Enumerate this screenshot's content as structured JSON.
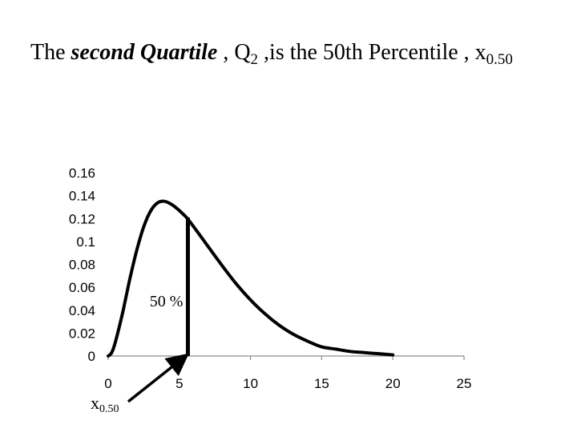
{
  "slide": {
    "title_part1": "The ",
    "title_emph": "second Quartile",
    "title_part2": " , Q",
    "title_q_sub": "2",
    "title_part3": " ,is the 50th Percentile , x",
    "title_x_sub": "0.50"
  },
  "pointer": {
    "label_base": "x",
    "label_sub": "0.50"
  },
  "chart_data": {
    "type": "line",
    "title": "",
    "xlabel": "",
    "ylabel": "",
    "xlim": [
      0,
      25
    ],
    "ylim": [
      0,
      0.16
    ],
    "x_ticks": [
      0,
      5,
      10,
      15,
      20,
      25
    ],
    "x_tick_labels": [
      "0",
      "5",
      "10",
      "15",
      "20",
      "25"
    ],
    "y_ticks": [
      0,
      0.02,
      0.04,
      0.06,
      0.08,
      0.1,
      0.12,
      0.14,
      0.16
    ],
    "y_tick_labels": [
      "0",
      "0.02",
      "0.04",
      "0.06",
      "0.08",
      "0.1",
      "0.12",
      "0.14",
      "0.16"
    ],
    "grid": false,
    "line_color": "#000000",
    "series": [
      {
        "x": [
          0,
          0.25,
          0.5,
          1,
          1.5,
          2,
          2.5,
          3,
          3.5,
          4,
          4.5,
          5,
          5.5,
          6,
          7,
          8,
          9,
          10,
          11,
          12,
          13,
          14,
          15,
          16,
          17,
          18,
          19,
          20
        ],
        "y": [
          0,
          0.003,
          0.012,
          0.037,
          0.066,
          0.092,
          0.113,
          0.127,
          0.134,
          0.135,
          0.132,
          0.127,
          0.121,
          0.113,
          0.096,
          0.079,
          0.063,
          0.049,
          0.037,
          0.027,
          0.019,
          0.013,
          0.008,
          0.006,
          0.004,
          0.003,
          0.002,
          0.001
        ]
      }
    ],
    "marker": {
      "x": 5.6,
      "y": 0.121,
      "label": "50 %"
    }
  }
}
